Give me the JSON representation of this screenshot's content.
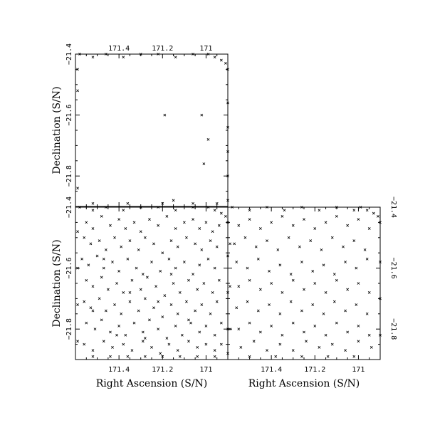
{
  "chart_data": [
    {
      "type": "scatter",
      "panel": "top-left",
      "title": "",
      "xlabel": "",
      "ylabel": "Declination (S/N)",
      "xlim": [
        171.6,
        170.9
      ],
      "ylim": [
        -21.9,
        -21.4
      ],
      "x_ticks": [
        171.4,
        171.2,
        171
      ],
      "x_tick_labels": [
        "171.4",
        "171.2",
        "171"
      ],
      "y_ticks": [
        -21.4,
        -21.6,
        -21.8
      ],
      "y_tick_labels": [
        "−21.4",
        "−21.6",
        "−21.8"
      ],
      "x_tick_labels_position": "top",
      "y_tick_labels_position": "left",
      "marker": "x",
      "points": [
        [
          171.19,
          -21.6
        ],
        [
          171.02,
          -21.6
        ],
        [
          170.99,
          -21.68
        ],
        [
          171.01,
          -21.76
        ]
      ],
      "edge_points": [
        [
          171.58,
          -21.4
        ],
        [
          171.52,
          -21.41
        ],
        [
          171.46,
          -21.4
        ],
        [
          171.38,
          -21.41
        ],
        [
          171.3,
          -21.4
        ],
        [
          171.22,
          -21.4
        ],
        [
          171.14,
          -21.41
        ],
        [
          171.06,
          -21.4
        ],
        [
          170.99,
          -21.4
        ],
        [
          170.96,
          -21.41
        ],
        [
          170.93,
          -21.42
        ],
        [
          170.91,
          -21.43
        ],
        [
          170.9,
          -21.45
        ],
        [
          171.59,
          -21.45
        ],
        [
          171.59,
          -21.52
        ],
        [
          170.9,
          -21.56
        ],
        [
          170.9,
          -21.64
        ],
        [
          170.9,
          -21.72
        ],
        [
          170.9,
          -21.8
        ],
        [
          171.59,
          -21.84
        ],
        [
          170.9,
          -21.88
        ],
        [
          171.52,
          -21.89
        ],
        [
          171.36,
          -21.89
        ],
        [
          171.2,
          -21.89
        ],
        [
          171.15,
          -21.88
        ],
        [
          171.06,
          -21.89
        ],
        [
          170.95,
          -21.89
        ]
      ]
    },
    {
      "type": "scatter",
      "panel": "bottom-left",
      "title": "",
      "xlabel": "Right Ascension (S/N)",
      "ylabel": "Declination (S/N)",
      "xlim": [
        171.6,
        170.9
      ],
      "ylim": [
        -21.9,
        -21.4
      ],
      "x_ticks": [
        171.4,
        171.2,
        171
      ],
      "x_tick_labels": [
        "171.4",
        "171.2",
        "171"
      ],
      "y_ticks": [
        -21.4,
        -21.6,
        -21.8
      ],
      "y_tick_labels": [
        "−21.4",
        "−21.6",
        "−21.8"
      ],
      "x_tick_labels_position": "bottom",
      "y_tick_labels_position": "left",
      "marker": "x",
      "points": [
        [
          171.55,
          -21.45
        ],
        [
          171.52,
          -21.47
        ],
        [
          171.48,
          -21.43
        ],
        [
          171.44,
          -21.46
        ],
        [
          171.4,
          -21.44
        ],
        [
          171.37,
          -21.47
        ],
        [
          171.33,
          -21.45
        ],
        [
          171.3,
          -21.48
        ],
        [
          171.26,
          -21.44
        ],
        [
          171.22,
          -21.46
        ],
        [
          171.18,
          -21.43
        ],
        [
          171.14,
          -21.47
        ],
        [
          171.1,
          -21.45
        ],
        [
          171.06,
          -21.44
        ],
        [
          171.03,
          -21.47
        ],
        [
          171.0,
          -21.45
        ],
        [
          170.97,
          -21.48
        ],
        [
          170.94,
          -21.46
        ],
        [
          171.56,
          -21.5
        ],
        [
          171.53,
          -21.52
        ],
        [
          171.49,
          -21.51
        ],
        [
          171.46,
          -21.54
        ],
        [
          171.42,
          -21.5
        ],
        [
          171.39,
          -21.53
        ],
        [
          171.35,
          -21.51
        ],
        [
          171.31,
          -21.54
        ],
        [
          171.28,
          -21.5
        ],
        [
          171.24,
          -21.52
        ],
        [
          171.2,
          -21.55
        ],
        [
          171.16,
          -21.51
        ],
        [
          171.13,
          -21.53
        ],
        [
          171.09,
          -21.5
        ],
        [
          171.05,
          -21.52
        ],
        [
          171.02,
          -21.54
        ],
        [
          170.98,
          -21.51
        ],
        [
          170.95,
          -21.53
        ],
        [
          171.57,
          -21.57
        ],
        [
          171.54,
          -21.59
        ],
        [
          171.5,
          -21.56
        ],
        [
          171.47,
          -21.6
        ],
        [
          171.43,
          -21.58
        ],
        [
          171.4,
          -21.61
        ],
        [
          171.36,
          -21.57
        ],
        [
          171.32,
          -21.6
        ],
        [
          171.29,
          -21.62
        ],
        [
          171.25,
          -21.58
        ],
        [
          171.21,
          -21.61
        ],
        [
          171.17,
          -21.57
        ],
        [
          171.14,
          -21.6
        ],
        [
          171.1,
          -21.58
        ],
        [
          171.06,
          -21.62
        ],
        [
          171.03,
          -21.59
        ],
        [
          170.99,
          -21.57
        ],
        [
          170.96,
          -21.6
        ],
        [
          171.55,
          -21.64
        ],
        [
          171.52,
          -21.66
        ],
        [
          171.48,
          -21.63
        ],
        [
          171.45,
          -21.67
        ],
        [
          171.41,
          -21.65
        ],
        [
          171.38,
          -21.68
        ],
        [
          171.34,
          -21.64
        ],
        [
          171.3,
          -21.67
        ],
        [
          171.27,
          -21.63
        ],
        [
          171.23,
          -21.66
        ],
        [
          171.19,
          -21.69
        ],
        [
          171.15,
          -21.65
        ],
        [
          171.12,
          -21.68
        ],
        [
          171.08,
          -21.64
        ],
        [
          171.04,
          -21.67
        ],
        [
          171.01,
          -21.65
        ],
        [
          170.97,
          -21.68
        ],
        [
          170.94,
          -21.64
        ],
        [
          171.56,
          -21.71
        ],
        [
          171.53,
          -21.73
        ],
        [
          171.49,
          -21.7
        ],
        [
          171.46,
          -21.74
        ],
        [
          171.42,
          -21.72
        ],
        [
          171.39,
          -21.75
        ],
        [
          171.35,
          -21.71
        ],
        [
          171.31,
          -21.74
        ],
        [
          171.28,
          -21.7
        ],
        [
          171.24,
          -21.73
        ],
        [
          171.2,
          -21.76
        ],
        [
          171.16,
          -21.72
        ],
        [
          171.13,
          -21.75
        ],
        [
          171.09,
          -21.71
        ],
        [
          171.05,
          -21.74
        ],
        [
          171.02,
          -21.72
        ],
        [
          170.98,
          -21.75
        ],
        [
          170.95,
          -21.71
        ],
        [
          171.55,
          -21.78
        ],
        [
          171.51,
          -21.8
        ],
        [
          171.48,
          -21.77
        ],
        [
          171.44,
          -21.81
        ],
        [
          171.4,
          -21.79
        ],
        [
          171.37,
          -21.82
        ],
        [
          171.33,
          -21.78
        ],
        [
          171.29,
          -21.81
        ],
        [
          171.26,
          -21.77
        ],
        [
          171.22,
          -21.8
        ],
        [
          171.18,
          -21.83
        ],
        [
          171.14,
          -21.79
        ],
        [
          171.11,
          -21.82
        ],
        [
          171.07,
          -21.78
        ],
        [
          171.03,
          -21.81
        ],
        [
          171.0,
          -21.79
        ],
        [
          170.96,
          -21.82
        ],
        [
          170.93,
          -21.78
        ],
        [
          171.56,
          -21.85
        ],
        [
          171.52,
          -21.87
        ],
        [
          171.47,
          -21.84
        ],
        [
          171.43,
          -21.86
        ],
        [
          171.38,
          -21.85
        ],
        [
          171.34,
          -21.87
        ],
        [
          171.29,
          -21.84
        ],
        [
          171.25,
          -21.86
        ],
        [
          171.21,
          -21.88
        ],
        [
          171.17,
          -21.85
        ],
        [
          171.13,
          -21.87
        ],
        [
          171.08,
          -21.84
        ],
        [
          171.04,
          -21.86
        ],
        [
          171.0,
          -21.85
        ],
        [
          170.96,
          -21.87
        ],
        [
          170.93,
          -21.85
        ],
        [
          171.47,
          -21.57
        ],
        [
          171.35,
          -21.68
        ],
        [
          171.16,
          -21.62
        ],
        [
          171.08,
          -21.77
        ],
        [
          171.28,
          -21.83
        ],
        [
          171.52,
          -21.74
        ],
        [
          171.22,
          -21.71
        ],
        [
          171.41,
          -21.82
        ]
      ],
      "edge_points": [
        [
          171.58,
          -21.4
        ],
        [
          171.52,
          -21.41
        ],
        [
          171.46,
          -21.4
        ],
        [
          171.38,
          -21.41
        ],
        [
          171.3,
          -21.4
        ],
        [
          171.22,
          -21.4
        ],
        [
          171.14,
          -21.41
        ],
        [
          171.06,
          -21.4
        ],
        [
          170.99,
          -21.4
        ],
        [
          170.96,
          -21.41
        ],
        [
          170.93,
          -21.42
        ],
        [
          170.91,
          -21.43
        ],
        [
          170.9,
          -21.45
        ],
        [
          171.59,
          -21.48
        ],
        [
          171.59,
          -21.6
        ],
        [
          171.59,
          -21.72
        ],
        [
          171.59,
          -21.84
        ],
        [
          170.9,
          -21.56
        ],
        [
          170.9,
          -21.68
        ],
        [
          170.9,
          -21.8
        ],
        [
          170.9,
          -21.88
        ],
        [
          171.52,
          -21.89
        ],
        [
          171.44,
          -21.89
        ],
        [
          171.36,
          -21.89
        ],
        [
          171.28,
          -21.89
        ],
        [
          171.2,
          -21.89
        ],
        [
          171.12,
          -21.89
        ],
        [
          171.04,
          -21.89
        ],
        [
          170.96,
          -21.89
        ]
      ]
    },
    {
      "type": "scatter",
      "panel": "bottom-right",
      "title": "",
      "xlabel": "Right Ascension (S/N)",
      "ylabel": "",
      "xlim": [
        171.6,
        170.9
      ],
      "ylim": [
        -21.9,
        -21.4
      ],
      "x_ticks": [
        171.4,
        171.2,
        171
      ],
      "x_tick_labels": [
        "171.4",
        "171.2",
        "171"
      ],
      "y_ticks": [
        -21.4,
        -21.6,
        -21.8
      ],
      "y_tick_labels": [
        "−21.4",
        "−21.6",
        "−21.8"
      ],
      "x_tick_labels_position": "bottom",
      "y_tick_labels_position": "right",
      "marker": "x",
      "points": [
        [
          171.55,
          -21.46
        ],
        [
          171.5,
          -21.44
        ],
        [
          171.45,
          -21.47
        ],
        [
          171.4,
          -21.45
        ],
        [
          171.35,
          -21.43
        ],
        [
          171.3,
          -21.46
        ],
        [
          171.25,
          -21.44
        ],
        [
          171.2,
          -21.47
        ],
        [
          171.15,
          -21.45
        ],
        [
          171.1,
          -21.43
        ],
        [
          171.05,
          -21.46
        ],
        [
          171.0,
          -21.44
        ],
        [
          170.95,
          -21.47
        ],
        [
          171.57,
          -21.52
        ],
        [
          171.52,
          -21.5
        ],
        [
          171.47,
          -21.53
        ],
        [
          171.42,
          -21.51
        ],
        [
          171.37,
          -21.54
        ],
        [
          171.32,
          -21.5
        ],
        [
          171.27,
          -21.53
        ],
        [
          171.22,
          -21.51
        ],
        [
          171.17,
          -21.54
        ],
        [
          171.12,
          -21.5
        ],
        [
          171.07,
          -21.53
        ],
        [
          171.02,
          -21.51
        ],
        [
          170.97,
          -21.54
        ],
        [
          171.56,
          -21.58
        ],
        [
          171.51,
          -21.6
        ],
        [
          171.46,
          -21.57
        ],
        [
          171.41,
          -21.61
        ],
        [
          171.36,
          -21.59
        ],
        [
          171.31,
          -21.62
        ],
        [
          171.26,
          -21.58
        ],
        [
          171.21,
          -21.61
        ],
        [
          171.16,
          -21.59
        ],
        [
          171.11,
          -21.62
        ],
        [
          171.06,
          -21.58
        ],
        [
          171.01,
          -21.6
        ],
        [
          170.96,
          -21.57
        ],
        [
          171.55,
          -21.66
        ],
        [
          171.5,
          -21.64
        ],
        [
          171.45,
          -21.67
        ],
        [
          171.4,
          -21.65
        ],
        [
          171.35,
          -21.68
        ],
        [
          171.3,
          -21.64
        ],
        [
          171.25,
          -21.67
        ],
        [
          171.2,
          -21.65
        ],
        [
          171.15,
          -21.68
        ],
        [
          171.1,
          -21.64
        ],
        [
          171.05,
          -21.67
        ],
        [
          171.0,
          -21.65
        ],
        [
          170.95,
          -21.68
        ],
        [
          171.56,
          -21.73
        ],
        [
          171.51,
          -21.71
        ],
        [
          171.46,
          -21.74
        ],
        [
          171.41,
          -21.72
        ],
        [
          171.36,
          -21.75
        ],
        [
          171.31,
          -21.71
        ],
        [
          171.26,
          -21.74
        ],
        [
          171.21,
          -21.72
        ],
        [
          171.16,
          -21.75
        ],
        [
          171.11,
          -21.71
        ],
        [
          171.06,
          -21.74
        ],
        [
          171.01,
          -21.72
        ],
        [
          170.96,
          -21.75
        ],
        [
          171.55,
          -21.8
        ],
        [
          171.5,
          -21.78
        ],
        [
          171.45,
          -21.81
        ],
        [
          171.4,
          -21.79
        ],
        [
          171.35,
          -21.82
        ],
        [
          171.3,
          -21.78
        ],
        [
          171.25,
          -21.81
        ],
        [
          171.2,
          -21.79
        ],
        [
          171.15,
          -21.82
        ],
        [
          171.1,
          -21.78
        ],
        [
          171.05,
          -21.81
        ],
        [
          171.0,
          -21.79
        ],
        [
          170.95,
          -21.82
        ],
        [
          171.54,
          -21.86
        ],
        [
          171.48,
          -21.84
        ],
        [
          171.42,
          -21.87
        ],
        [
          171.36,
          -21.85
        ],
        [
          171.3,
          -21.87
        ],
        [
          171.24,
          -21.84
        ],
        [
          171.18,
          -21.86
        ],
        [
          171.12,
          -21.85
        ],
        [
          171.06,
          -21.87
        ],
        [
          171.0,
          -21.84
        ],
        [
          170.94,
          -21.86
        ]
      ],
      "edge_points": [
        [
          171.58,
          -21.4
        ],
        [
          171.5,
          -21.41
        ],
        [
          171.42,
          -21.4
        ],
        [
          171.34,
          -21.41
        ],
        [
          171.26,
          -21.4
        ],
        [
          171.18,
          -21.41
        ],
        [
          171.1,
          -21.4
        ],
        [
          171.02,
          -21.41
        ],
        [
          170.99,
          -21.4
        ],
        [
          170.96,
          -21.41
        ],
        [
          170.93,
          -21.42
        ],
        [
          170.91,
          -21.43
        ],
        [
          170.9,
          -21.45
        ],
        [
          171.59,
          -21.52
        ],
        [
          171.59,
          -21.66
        ],
        [
          171.59,
          -21.8
        ],
        [
          170.9,
          -21.58
        ],
        [
          170.9,
          -21.7
        ],
        [
          170.9,
          -21.82
        ],
        [
          171.5,
          -21.89
        ],
        [
          171.38,
          -21.89
        ],
        [
          171.26,
          -21.89
        ],
        [
          171.14,
          -21.89
        ],
        [
          171.02,
          -21.89
        ]
      ]
    }
  ]
}
